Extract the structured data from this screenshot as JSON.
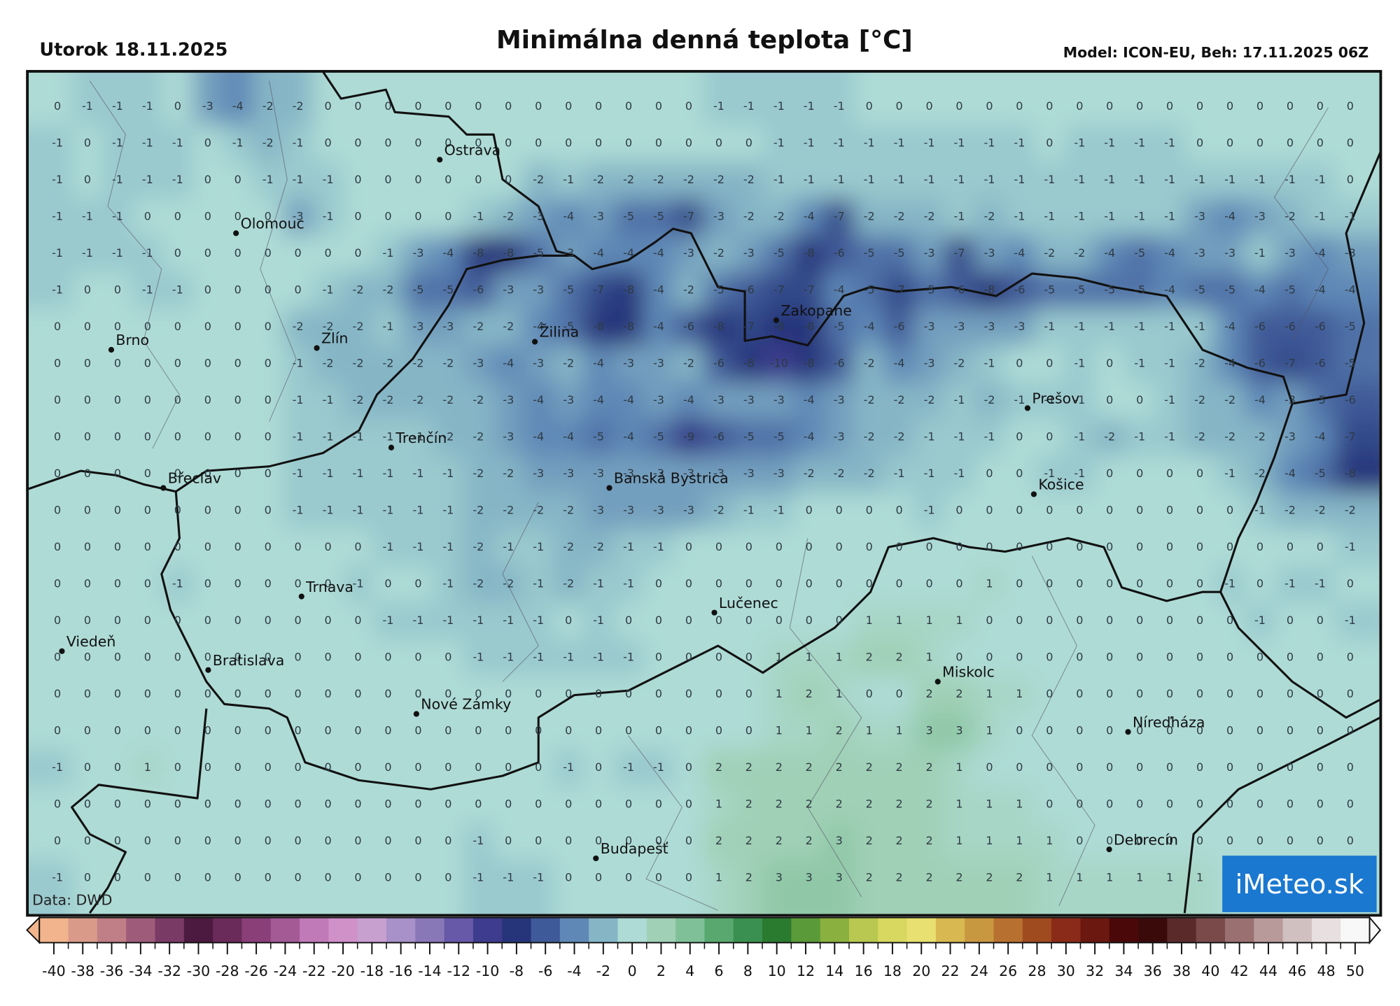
{
  "header": {
    "date": "Utorok 18.11.2025",
    "title": "Minimálna denná teplota [°C]",
    "model": "Model: ICON-EU, Beh: 17.11.2025 06Z"
  },
  "map": {
    "values": [
      [
        0,
        -1,
        -1,
        -1,
        0,
        -3,
        -4,
        -2,
        -2,
        0,
        0,
        0,
        0,
        0,
        0,
        0,
        0,
        0,
        0,
        0,
        0,
        0,
        -1,
        -1,
        -1,
        -1,
        -1,
        0,
        0,
        0,
        0,
        0,
        0,
        0,
        0,
        0,
        0,
        0,
        0,
        0,
        0,
        0,
        0,
        0
      ],
      [
        -1,
        0,
        -1,
        -1,
        -1,
        0,
        -1,
        -2,
        -1,
        0,
        0,
        0,
        0,
        0,
        0,
        0,
        0,
        0,
        0,
        0,
        0,
        0,
        0,
        0,
        -1,
        -1,
        -1,
        -1,
        -1,
        -1,
        -1,
        -1,
        -1,
        0,
        -1,
        -1,
        -1,
        -1,
        0,
        0,
        0,
        0,
        0,
        0
      ],
      [
        -1,
        0,
        -1,
        -1,
        -1,
        0,
        0,
        -1,
        -1,
        -1,
        0,
        0,
        0,
        0,
        0,
        0,
        -2,
        -1,
        -2,
        -2,
        -2,
        -2,
        -2,
        -2,
        -1,
        -1,
        -1,
        -1,
        -1,
        -1,
        -1,
        -1,
        -1,
        -1,
        -1,
        -1,
        -1,
        -1,
        -1,
        -1,
        -1,
        -1,
        -1,
        0
      ],
      [
        -1,
        -1,
        -1,
        0,
        0,
        0,
        0,
        0,
        -3,
        -1,
        0,
        0,
        0,
        0,
        -1,
        -2,
        -3,
        -4,
        -3,
        -5,
        -5,
        -7,
        -3,
        -2,
        -2,
        -4,
        -7,
        -2,
        -2,
        -2,
        -1,
        -2,
        -1,
        -1,
        -1,
        -1,
        -1,
        -1,
        -3,
        -4,
        -3,
        -2,
        -1,
        -1
      ],
      [
        -1,
        -1,
        -1,
        -1,
        0,
        0,
        0,
        0,
        0,
        0,
        0,
        -1,
        -3,
        -4,
        -8,
        -8,
        -5,
        -3,
        -4,
        -4,
        -4,
        -3,
        -2,
        -3,
        -5,
        -8,
        -6,
        -5,
        -5,
        -3,
        -7,
        -3,
        -4,
        -2,
        -2,
        -4,
        -5,
        -4,
        -3,
        -3,
        -1,
        -3,
        -4,
        -3
      ],
      [
        -1,
        0,
        0,
        -1,
        -1,
        0,
        0,
        0,
        0,
        -1,
        -2,
        -2,
        -5,
        -5,
        -6,
        -3,
        -3,
        -5,
        -7,
        -8,
        -4,
        -2,
        -5,
        -6,
        -7,
        -7,
        -4,
        -5,
        -7,
        -5,
        -6,
        -8,
        -6,
        -5,
        -5,
        -5,
        -5,
        -4,
        -5,
        -5,
        -4,
        -5,
        -4,
        -4
      ],
      [
        0,
        0,
        0,
        0,
        0,
        0,
        0,
        0,
        -2,
        -2,
        -2,
        -1,
        -3,
        -3,
        -2,
        -2,
        -4,
        -5,
        -8,
        -8,
        -4,
        -6,
        -8,
        -7,
        -8,
        -8,
        -5,
        -4,
        -6,
        -3,
        -3,
        -3,
        -3,
        -1,
        -1,
        -1,
        -1,
        -1,
        -1,
        -4,
        -6,
        -6,
        -6,
        -5
      ],
      [
        0,
        0,
        0,
        0,
        0,
        0,
        0,
        0,
        -1,
        -2,
        -2,
        -2,
        -2,
        -2,
        -3,
        -4,
        -3,
        -2,
        -4,
        -3,
        -3,
        -2,
        -6,
        -8,
        -10,
        -8,
        -6,
        -2,
        -4,
        -3,
        -2,
        -1,
        0,
        0,
        -1,
        0,
        -1,
        -1,
        -2,
        -4,
        -6,
        -7,
        -6,
        -5
      ],
      [
        0,
        0,
        0,
        0,
        0,
        0,
        0,
        0,
        -1,
        -1,
        -2,
        -2,
        -2,
        -2,
        -2,
        -3,
        -4,
        -3,
        -4,
        -4,
        -3,
        -4,
        -3,
        -3,
        -3,
        -4,
        -3,
        -2,
        -2,
        -2,
        -1,
        -2,
        -1,
        -1,
        -1,
        0,
        0,
        -1,
        -2,
        -2,
        -4,
        -3,
        -5,
        -6
      ],
      [
        0,
        0,
        0,
        0,
        0,
        0,
        0,
        0,
        -1,
        -1,
        -1,
        -1,
        -1,
        -2,
        -2,
        -3,
        -4,
        -4,
        -5,
        -4,
        -5,
        -9,
        -6,
        -5,
        -5,
        -4,
        -3,
        -2,
        -2,
        -1,
        -1,
        -1,
        0,
        0,
        -1,
        -2,
        -1,
        -1,
        -2,
        -2,
        -2,
        -3,
        -4,
        -7
      ],
      [
        0,
        0,
        0,
        0,
        0,
        0,
        0,
        0,
        -1,
        -1,
        -1,
        -1,
        -1,
        -1,
        -2,
        -2,
        -3,
        -3,
        -3,
        -3,
        -3,
        -3,
        -3,
        -3,
        -3,
        -2,
        -2,
        -2,
        -1,
        -1,
        -1,
        0,
        0,
        -1,
        -1,
        0,
        0,
        0,
        0,
        -1,
        -2,
        -4,
        -5,
        -8
      ],
      [
        0,
        0,
        0,
        0,
        0,
        0,
        0,
        0,
        -1,
        -1,
        -1,
        -1,
        -1,
        -1,
        -2,
        -2,
        -2,
        -2,
        -3,
        -3,
        -3,
        -3,
        -2,
        -1,
        -1,
        0,
        0,
        0,
        0,
        -1,
        0,
        0,
        0,
        0,
        0,
        0,
        0,
        0,
        0,
        0,
        -1,
        -2,
        -2,
        -2
      ],
      [
        0,
        0,
        0,
        0,
        0,
        0,
        0,
        0,
        0,
        0,
        0,
        -1,
        -1,
        -1,
        -2,
        -1,
        -1,
        -2,
        -2,
        -1,
        -1,
        0,
        0,
        0,
        0,
        0,
        0,
        0,
        0,
        0,
        0,
        0,
        0,
        0,
        0,
        0,
        0,
        0,
        0,
        0,
        0,
        0,
        0,
        -1
      ],
      [
        0,
        0,
        0,
        0,
        -1,
        0,
        0,
        0,
        0,
        0,
        -1,
        0,
        0,
        -1,
        -2,
        -2,
        -1,
        -2,
        -1,
        -1,
        0,
        0,
        0,
        0,
        0,
        0,
        0,
        0,
        0,
        0,
        0,
        1,
        0,
        0,
        0,
        0,
        0,
        0,
        0,
        -1,
        0,
        -1,
        -1,
        0
      ],
      [
        0,
        0,
        0,
        0,
        0,
        0,
        0,
        0,
        0,
        0,
        0,
        -1,
        -1,
        -1,
        -1,
        -1,
        -1,
        0,
        -1,
        0,
        0,
        0,
        0,
        0,
        0,
        0,
        0,
        1,
        1,
        1,
        1,
        0,
        0,
        0,
        0,
        0,
        0,
        0,
        0,
        0,
        -1,
        0,
        0,
        -1
      ],
      [
        0,
        0,
        0,
        0,
        0,
        0,
        0,
        0,
        0,
        0,
        0,
        0,
        0,
        0,
        -1,
        -1,
        -1,
        -1,
        -1,
        -1,
        0,
        0,
        0,
        0,
        1,
        1,
        1,
        2,
        2,
        1,
        0,
        0,
        0,
        0,
        0,
        0,
        0,
        0,
        0,
        0,
        0,
        0,
        0,
        0
      ],
      [
        0,
        0,
        0,
        0,
        0,
        0,
        0,
        0,
        0,
        0,
        0,
        0,
        0,
        0,
        0,
        0,
        0,
        0,
        0,
        0,
        0,
        0,
        0,
        0,
        1,
        2,
        1,
        0,
        0,
        2,
        2,
        1,
        1,
        0,
        0,
        0,
        0,
        0,
        0,
        0,
        0,
        0,
        0,
        0
      ],
      [
        0,
        0,
        0,
        0,
        0,
        0,
        0,
        0,
        0,
        0,
        0,
        0,
        0,
        0,
        0,
        0,
        0,
        0,
        0,
        0,
        0,
        0,
        0,
        0,
        1,
        1,
        2,
        1,
        1,
        3,
        3,
        1,
        0,
        0,
        0,
        0,
        0,
        0,
        0,
        0,
        0,
        0,
        0,
        0
      ],
      [
        -1,
        0,
        0,
        1,
        0,
        0,
        0,
        0,
        0,
        0,
        0,
        0,
        0,
        0,
        0,
        0,
        0,
        -1,
        0,
        -1,
        -1,
        0,
        2,
        2,
        2,
        2,
        2,
        2,
        2,
        2,
        1,
        0,
        0,
        0,
        0,
        0,
        0,
        0,
        0,
        0,
        0,
        0,
        0,
        0
      ],
      [
        0,
        0,
        0,
        0,
        0,
        0,
        0,
        0,
        0,
        0,
        0,
        0,
        0,
        0,
        0,
        0,
        0,
        0,
        0,
        0,
        0,
        0,
        1,
        2,
        2,
        2,
        2,
        2,
        2,
        2,
        1,
        1,
        1,
        0,
        0,
        0,
        0,
        0,
        0,
        0,
        0,
        0,
        0,
        0
      ],
      [
        0,
        0,
        0,
        0,
        0,
        0,
        0,
        0,
        0,
        0,
        0,
        0,
        0,
        0,
        -1,
        0,
        0,
        0,
        0,
        0,
        0,
        0,
        2,
        2,
        2,
        2,
        3,
        2,
        2,
        2,
        1,
        1,
        1,
        1,
        0,
        0,
        0,
        0,
        0,
        0,
        0,
        0,
        0,
        0
      ],
      [
        -1,
        0,
        0,
        0,
        0,
        0,
        0,
        0,
        0,
        0,
        0,
        0,
        0,
        0,
        -1,
        -1,
        -1,
        0,
        0,
        0,
        0,
        0,
        1,
        2,
        3,
        3,
        3,
        2,
        2,
        2,
        2,
        2,
        2,
        1,
        1,
        1,
        1,
        1,
        1
      ]
    ],
    "cities": [
      "Ostrava",
      "Olomouc",
      "Brno",
      "Zlín",
      "Žilina",
      "Zakopane",
      "Trenčín",
      "Prešov",
      "Břeclav",
      "Banská Bystrica",
      "Košice",
      "Trnava",
      "Lučenec",
      "Viedeň",
      "Bratislava",
      "Miskolc",
      "Nové Zámky",
      "Níreďháza",
      "Debrecín",
      "Budapešť"
    ]
  },
  "colorbar": {
    "ticks": [
      -40,
      -38,
      -36,
      -34,
      -32,
      -30,
      -28,
      -26,
      -24,
      -22,
      -20,
      -18,
      -16,
      -14,
      -12,
      -10,
      -8,
      -6,
      -4,
      -2,
      0,
      2,
      4,
      6,
      8,
      10,
      12,
      14,
      16,
      18,
      20,
      22,
      24,
      26,
      28,
      30,
      32,
      34,
      36,
      38,
      40,
      42,
      44,
      46,
      48,
      50
    ],
    "colors": [
      "#f2b48c",
      "#d99a8a",
      "#c07e86",
      "#9e5c7a",
      "#7a3a66",
      "#4c1a40",
      "#6a2a5a",
      "#8a3f78",
      "#a35a95",
      "#c07ab8",
      "#d090c8",
      "#c8a0d0",
      "#a890c8",
      "#8878b8",
      "#6858a8",
      "#3e3c8e",
      "#26357a",
      "#3f5a98",
      "#5f88b6",
      "#86b6c6",
      "#aedbd6",
      "#a0d0b6",
      "#80c098",
      "#58a870",
      "#3a9050",
      "#2a7a30",
      "#5a9a38",
      "#8ab040",
      "#b8c850",
      "#d8d860",
      "#e8e070",
      "#d8b850",
      "#c89840",
      "#b87030",
      "#a04a20",
      "#8a2a18",
      "#6a1810",
      "#4a0808",
      "#3a0a0a",
      "#5a2a2a",
      "#7a4a4a",
      "#9a7070",
      "#b89a9a",
      "#d0c0c0",
      "#e8e0e0",
      "#f8f8f8"
    ]
  },
  "source": "Data: DWD",
  "logo": "iMeteo.sk"
}
